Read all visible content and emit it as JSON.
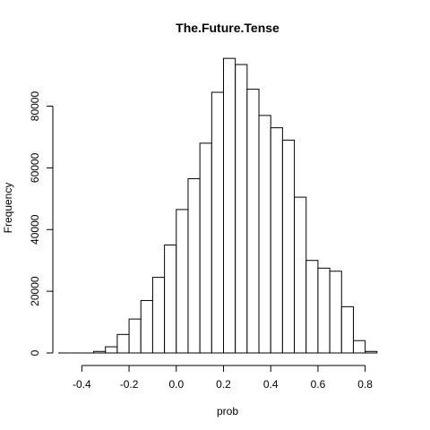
{
  "chart_data": {
    "type": "bar",
    "title": "The.Future.Tense",
    "xlabel": "prob",
    "ylabel": "Frequency",
    "bin_width": 0.05,
    "bins": [
      {
        "start": -0.5,
        "end": -0.45,
        "count": 0
      },
      {
        "start": -0.45,
        "end": -0.4,
        "count": 0
      },
      {
        "start": -0.4,
        "end": -0.35,
        "count": 0
      },
      {
        "start": -0.35,
        "end": -0.3,
        "count": 500
      },
      {
        "start": -0.3,
        "end": -0.25,
        "count": 2000
      },
      {
        "start": -0.25,
        "end": -0.2,
        "count": 6000
      },
      {
        "start": -0.2,
        "end": -0.15,
        "count": 11000
      },
      {
        "start": -0.15,
        "end": -0.1,
        "count": 17000
      },
      {
        "start": -0.1,
        "end": -0.05,
        "count": 24500
      },
      {
        "start": -0.05,
        "end": 0.0,
        "count": 35000
      },
      {
        "start": 0.0,
        "end": 0.05,
        "count": 46500
      },
      {
        "start": 0.05,
        "end": 0.1,
        "count": 56500
      },
      {
        "start": 0.1,
        "end": 0.15,
        "count": 68000
      },
      {
        "start": 0.15,
        "end": 0.2,
        "count": 84500
      },
      {
        "start": 0.2,
        "end": 0.25,
        "count": 95500
      },
      {
        "start": 0.25,
        "end": 0.3,
        "count": 93500
      },
      {
        "start": 0.3,
        "end": 0.35,
        "count": 85500
      },
      {
        "start": 0.35,
        "end": 0.4,
        "count": 77000
      },
      {
        "start": 0.4,
        "end": 0.45,
        "count": 73000
      },
      {
        "start": 0.45,
        "end": 0.5,
        "count": 69000
      },
      {
        "start": 0.5,
        "end": 0.55,
        "count": 50500
      },
      {
        "start": 0.55,
        "end": 0.6,
        "count": 30000
      },
      {
        "start": 0.6,
        "end": 0.65,
        "count": 27500
      },
      {
        "start": 0.65,
        "end": 0.7,
        "count": 26500
      },
      {
        "start": 0.7,
        "end": 0.75,
        "count": 15000
      },
      {
        "start": 0.75,
        "end": 0.8,
        "count": 4000
      },
      {
        "start": 0.8,
        "end": 0.85,
        "count": 500
      }
    ],
    "xlim": [
      -0.5,
      0.9
    ],
    "ylim": [
      0,
      97000
    ],
    "x_ticks": [
      {
        "value": -0.4,
        "label": "-0.4"
      },
      {
        "value": -0.2,
        "label": "-0.2"
      },
      {
        "value": 0.0,
        "label": "0.0"
      },
      {
        "value": 0.2,
        "label": "0.2"
      },
      {
        "value": 0.4,
        "label": "0.4"
      },
      {
        "value": 0.6,
        "label": "0.6"
      },
      {
        "value": 0.8,
        "label": "0.8"
      }
    ],
    "y_ticks": [
      {
        "value": 0,
        "label": "0"
      },
      {
        "value": 20000,
        "label": "20000"
      },
      {
        "value": 40000,
        "label": "40000"
      },
      {
        "value": 60000,
        "label": "60000"
      },
      {
        "value": 80000,
        "label": "80000"
      }
    ],
    "bar_fill": "#ffffff",
    "bar_stroke": "#000000",
    "grid": false,
    "legend": "none"
  }
}
